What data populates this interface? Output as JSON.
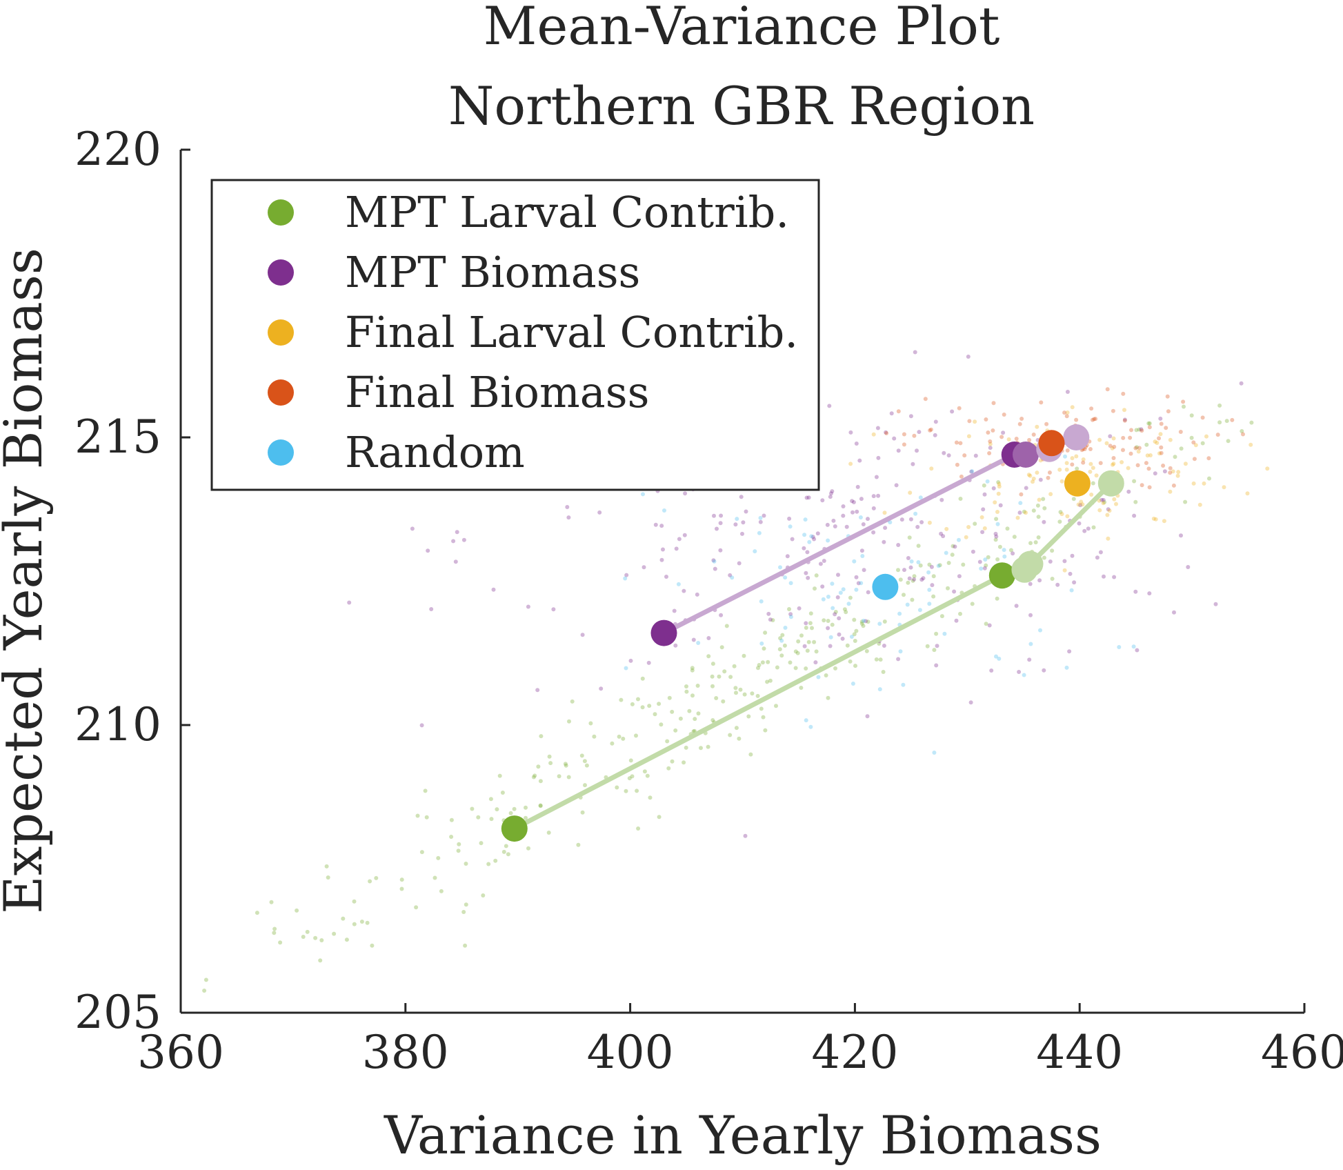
{
  "chart_data": {
    "type": "scatter",
    "title": "Mean-Variance Plot",
    "subtitle": "Northern GBR Region",
    "xlabel": "Variance in Yearly Biomass",
    "ylabel": "Expected Yearly Biomass",
    "xlim": [
      360,
      460
    ],
    "ylim": [
      205,
      220
    ],
    "xticks": [
      "360",
      "380",
      "400",
      "420",
      "440",
      "460"
    ],
    "yticks": [
      "205",
      "210",
      "215",
      "220"
    ],
    "grid": false,
    "legend_position": "top-left",
    "series": [
      {
        "name": "MPT Larval Contrib.",
        "color": "#77AC30",
        "light_color": "#C2DBA8",
        "line": [
          [
            389.7,
            208.2
          ],
          [
            433.1,
            212.6
          ],
          [
            435.1,
            212.7
          ],
          [
            435.6,
            212.8
          ],
          [
            442.8,
            214.2
          ]
        ],
        "markers": [
          {
            "x": 389.7,
            "y": 208.2,
            "style": "dark"
          },
          {
            "x": 433.1,
            "y": 212.6,
            "style": "dark"
          },
          {
            "x": 435.1,
            "y": 212.7,
            "style": "light"
          },
          {
            "x": 435.6,
            "y": 212.8,
            "style": "light"
          },
          {
            "x": 442.8,
            "y": 214.2,
            "style": "light"
          }
        ]
      },
      {
        "name": "MPT Biomass",
        "color": "#7E2F8E",
        "light_color": "#C8A8D1",
        "line": [
          [
            403.0,
            211.6
          ],
          [
            434.2,
            214.7
          ],
          [
            435.2,
            214.7
          ],
          [
            437.3,
            214.8
          ],
          [
            439.7,
            215.0
          ]
        ],
        "markers": [
          {
            "x": 403.0,
            "y": 211.6,
            "style": "dark"
          },
          {
            "x": 434.2,
            "y": 214.7,
            "style": "dark"
          },
          {
            "x": 435.2,
            "y": 214.7,
            "style": "mid"
          },
          {
            "x": 437.3,
            "y": 214.8,
            "style": "light"
          },
          {
            "x": 439.7,
            "y": 215.0,
            "style": "light"
          }
        ]
      },
      {
        "name": "Final Larval Contrib.",
        "color": "#EDB120",
        "markers": [
          {
            "x": 439.8,
            "y": 214.2,
            "style": "dark"
          }
        ]
      },
      {
        "name": "Final Biomass",
        "color": "#D95319",
        "markers": [
          {
            "x": 437.5,
            "y": 214.9,
            "style": "dark"
          }
        ]
      },
      {
        "name": "Random",
        "color": "#4DBEEE",
        "markers": [
          {
            "x": 422.7,
            "y": 212.4,
            "style": "dark"
          }
        ]
      }
    ],
    "background_point_clouds": [
      {
        "series": "MPT Larval Contrib.",
        "color": "#77AC30",
        "cx": 410,
        "cy": 210.6,
        "sx": 24,
        "sy": 1.9,
        "count": 340,
        "note_correlated": true
      },
      {
        "series": "MPT Biomass",
        "color": "#7E2F8E",
        "cx": 420,
        "cy": 213.3,
        "sx": 17,
        "sy": 1.3,
        "count": 300
      },
      {
        "series": "Final Larval Contrib.",
        "color": "#EDB120",
        "cx": 440,
        "cy": 214.4,
        "sx": 7,
        "sy": 0.6,
        "count": 110
      },
      {
        "series": "Final Biomass",
        "color": "#D95319",
        "cx": 438,
        "cy": 214.9,
        "sx": 7,
        "sy": 0.4,
        "count": 110
      },
      {
        "series": "Random",
        "color": "#4DBEEE",
        "cx": 422,
        "cy": 212.4,
        "sx": 10,
        "sy": 1.1,
        "count": 90
      }
    ]
  }
}
